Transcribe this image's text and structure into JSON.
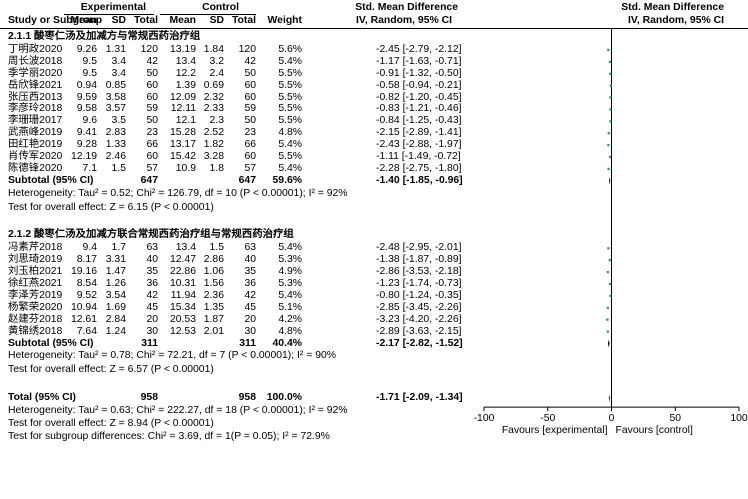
{
  "headers": {
    "group_experimental": "Experimental",
    "group_control": "Control",
    "study": "Study or Subgroup",
    "mean": "Mean",
    "sd": "SD",
    "total": "Total",
    "weight": "Weight",
    "smd_title": "Std. Mean Difference",
    "smd_sub": "IV, Random, 95% CI"
  },
  "subgroups": [
    {
      "title": "2.1.1 酸枣仁汤及加减方与常规西药治疗组",
      "studies": [
        {
          "name": "丁明政2020",
          "em": "9.26",
          "esd": "1.31",
          "et": "120",
          "cm": "13.19",
          "csd": "1.84",
          "ct": "120",
          "w": "5.6%",
          "ci": "-2.45 [-2.79, -2.12]",
          "smd": -2.45,
          "lo": -2.79,
          "hi": -2.12
        },
        {
          "name": "周长波2018",
          "em": "9.5",
          "esd": "3.4",
          "et": "42",
          "cm": "13.4",
          "csd": "3.2",
          "ct": "42",
          "w": "5.4%",
          "ci": "-1.17 [-1.63, -0.71]",
          "smd": -1.17,
          "lo": -1.63,
          "hi": -0.71
        },
        {
          "name": "季学丽2020",
          "em": "9.5",
          "esd": "3.4",
          "et": "50",
          "cm": "12.2",
          "csd": "2.4",
          "ct": "50",
          "w": "5.5%",
          "ci": "-0.91 [-1.32, -0.50]",
          "smd": -0.91,
          "lo": -1.32,
          "hi": -0.5
        },
        {
          "name": "岳欣锋2021",
          "em": "0.94",
          "esd": "0.85",
          "et": "60",
          "cm": "1.39",
          "csd": "0.69",
          "ct": "60",
          "w": "5.5%",
          "ci": "-0.58 [-0.94, -0.21]",
          "smd": -0.58,
          "lo": -0.94,
          "hi": -0.21
        },
        {
          "name": "张压西2013",
          "em": "9.59",
          "esd": "3.58",
          "et": "60",
          "cm": "12.09",
          "csd": "2.32",
          "ct": "60",
          "w": "5.5%",
          "ci": "-0.82 [-1.20, -0.45]",
          "smd": -0.82,
          "lo": -1.2,
          "hi": -0.45
        },
        {
          "name": "李彦玲2018",
          "em": "9.58",
          "esd": "3.57",
          "et": "59",
          "cm": "12.11",
          "csd": "2.33",
          "ct": "59",
          "w": "5.5%",
          "ci": "-0.83 [-1.21, -0.46]",
          "smd": -0.83,
          "lo": -1.21,
          "hi": -0.46
        },
        {
          "name": "李珊珊2017",
          "em": "9.6",
          "esd": "3.5",
          "et": "50",
          "cm": "12.1",
          "csd": "2.3",
          "ct": "50",
          "w": "5.5%",
          "ci": "-0.84 [-1.25, -0.43]",
          "smd": -0.84,
          "lo": -1.25,
          "hi": -0.43
        },
        {
          "name": "武燕峰2019",
          "em": "9.41",
          "esd": "2.83",
          "et": "23",
          "cm": "15.28",
          "csd": "2.52",
          "ct": "23",
          "w": "4.8%",
          "ci": "-2.15 [-2.89, -1.41]",
          "smd": -2.15,
          "lo": -2.89,
          "hi": -1.41
        },
        {
          "name": "田红艳2019",
          "em": "9.28",
          "esd": "1.33",
          "et": "66",
          "cm": "13.17",
          "csd": "1.82",
          "ct": "66",
          "w": "5.4%",
          "ci": "-2.43 [-2.88, -1.97]",
          "smd": -2.43,
          "lo": -2.88,
          "hi": -1.97
        },
        {
          "name": "肖传军2020",
          "em": "12.19",
          "esd": "2.46",
          "et": "60",
          "cm": "15.42",
          "csd": "3.28",
          "ct": "60",
          "w": "5.5%",
          "ci": "-1.11 [-1.49, -0.72]",
          "smd": -1.11,
          "lo": -1.49,
          "hi": -0.72
        },
        {
          "name": "陈德锋2020",
          "em": "7.1",
          "esd": "1.5",
          "et": "57",
          "cm": "10.9",
          "csd": "1.8",
          "ct": "57",
          "w": "5.4%",
          "ci": "-2.28 [-2.75, -1.80]",
          "smd": -2.28,
          "lo": -2.75,
          "hi": -1.8
        }
      ],
      "subtotal": {
        "label": "Subtotal (95% CI)",
        "et": "647",
        "ct": "647",
        "w": "59.6%",
        "ci": "-1.40 [-1.85, -0.96]",
        "smd": -1.4,
        "lo": -1.85,
        "hi": -0.96
      },
      "heterogeneity": "Heterogeneity: Tau² = 0.52; Chi² = 126.79, df = 10 (P < 0.00001); I² = 92%",
      "overall": "Test for overall effect: Z = 6.15 (P < 0.00001)"
    },
    {
      "title": "2.1.2 酸枣仁汤及加减方联合常规西药治疗组与常规西药治疗组",
      "studies": [
        {
          "name": "冯素芹2018",
          "em": "9.4",
          "esd": "1.7",
          "et": "63",
          "cm": "13.4",
          "csd": "1.5",
          "ct": "63",
          "w": "5.4%",
          "ci": "-2.48 [-2.95, -2.01]",
          "smd": -2.48,
          "lo": -2.95,
          "hi": -2.01
        },
        {
          "name": "刘思琦2019",
          "em": "8.17",
          "esd": "3.31",
          "et": "40",
          "cm": "12.47",
          "csd": "2.86",
          "ct": "40",
          "w": "5.3%",
          "ci": "-1.38 [-1.87, -0.89]",
          "smd": -1.38,
          "lo": -1.87,
          "hi": -0.89
        },
        {
          "name": "刘玉柏2021",
          "em": "19.16",
          "esd": "1.47",
          "et": "35",
          "cm": "22.86",
          "csd": "1.06",
          "ct": "35",
          "w": "4.9%",
          "ci": "-2.86 [-3.53, -2.18]",
          "smd": -2.86,
          "lo": -3.53,
          "hi": -2.18
        },
        {
          "name": "徐红燕2021",
          "em": "8.54",
          "esd": "1.26",
          "et": "36",
          "cm": "10.31",
          "csd": "1.56",
          "ct": "36",
          "w": "5.3%",
          "ci": "-1.23 [-1.74, -0.73]",
          "smd": -1.23,
          "lo": -1.74,
          "hi": -0.73
        },
        {
          "name": "李泽芳2019",
          "em": "9.52",
          "esd": "3.54",
          "et": "42",
          "cm": "11.94",
          "csd": "2.36",
          "ct": "42",
          "w": "5.4%",
          "ci": "-0.80 [-1.24, -0.35]",
          "smd": -0.8,
          "lo": -1.24,
          "hi": -0.35
        },
        {
          "name": "杨繁荣2020",
          "em": "10.94",
          "esd": "1.69",
          "et": "45",
          "cm": "15.34",
          "csd": "1.35",
          "ct": "45",
          "w": "5.1%",
          "ci": "-2.85 [-3.45, -2.26]",
          "smd": -2.85,
          "lo": -3.45,
          "hi": -2.26
        },
        {
          "name": "赵建芬2018",
          "em": "12.61",
          "esd": "2.84",
          "et": "20",
          "cm": "20.53",
          "csd": "1.87",
          "ct": "20",
          "w": "4.2%",
          "ci": "-3.23 [-4.20, -2.26]",
          "smd": -3.23,
          "lo": -4.2,
          "hi": -2.26
        },
        {
          "name": "黄锦绣2018",
          "em": "7.64",
          "esd": "1.24",
          "et": "30",
          "cm": "12.53",
          "csd": "2.01",
          "ct": "30",
          "w": "4.8%",
          "ci": "-2.89 [-3.63, -2.15]",
          "smd": -2.89,
          "lo": -3.63,
          "hi": -2.15
        }
      ],
      "subtotal": {
        "label": "Subtotal (95% CI)",
        "et": "311",
        "ct": "311",
        "w": "40.4%",
        "ci": "-2.17 [-2.82, -1.52]",
        "smd": -2.17,
        "lo": -2.82,
        "hi": -1.52
      },
      "heterogeneity": "Heterogeneity: Tau² = 0.78; Chi² = 72.21, df = 7 (P < 0.00001); I² = 90%",
      "overall": "Test for overall effect: Z = 6.57 (P < 0.00001)"
    }
  ],
  "total": {
    "label": "Total (95% CI)",
    "et": "958",
    "ct": "958",
    "w": "100.0%",
    "ci": "-1.71 [-2.09, -1.34]",
    "smd": -1.71,
    "lo": -2.09,
    "hi": -1.34
  },
  "footer": [
    "Heterogeneity: Tau² = 0.63; Chi² = 222.27, df = 18 (P < 0.00001); I² = 92%",
    "Test for overall effect: Z = 8.94 (P < 0.00001)",
    "Test for subgroup differences: Chi² = 3.69, df = 1(P = 0.05); I² = 72.9%"
  ],
  "chart_data": {
    "type": "forest",
    "title": "Std. Mean Difference",
    "subtitle": "IV, Random, 95% CI",
    "xlim": [
      -100,
      100
    ],
    "ticks": [
      -100,
      -50,
      0,
      50,
      100
    ],
    "tick_labels": [
      "-100",
      "-50",
      "0",
      "50",
      "100"
    ],
    "favours_left": "Favours [experimental]",
    "favours_right": "Favours [control]",
    "square_color": "#2f9e44"
  }
}
